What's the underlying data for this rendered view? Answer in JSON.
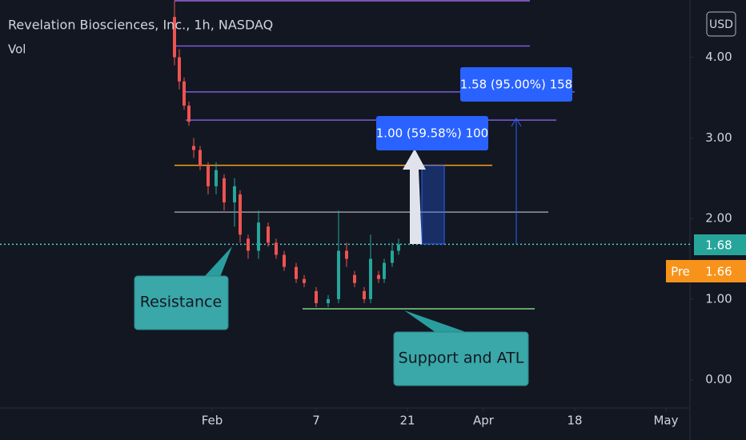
{
  "chart_data": {
    "type": "candlestick",
    "title": "Revelation Biosciences, Inc., 1h, NASDAQ",
    "subtitle": "Vol",
    "currency": "USD",
    "up_color": "#26a69a",
    "down_color": "#ef5350",
    "xlim": [
      0,
      86.2
    ],
    "xticks": [
      {
        "value": 26.5,
        "label": "Feb"
      },
      {
        "value": 39.5,
        "label": "7"
      },
      {
        "value": 50.9,
        "label": "21"
      },
      {
        "value": 60.4,
        "label": "Apr"
      },
      {
        "value": 71.8,
        "label": "18"
      },
      {
        "value": 83.2,
        "label": "May"
      }
    ],
    "ylim": [
      -0.35,
      4.71
    ],
    "yticks": [
      {
        "value": 0,
        "label": "0.00"
      },
      {
        "value": 1,
        "label": "1.00"
      },
      {
        "value": 2,
        "label": "2.00"
      },
      {
        "value": 3,
        "label": "3.00"
      },
      {
        "value": 4,
        "label": "4.00"
      }
    ],
    "x": [
      21.8,
      22.4,
      23.0,
      23.6,
      24.2,
      25.0,
      26.0,
      27.0,
      28.0,
      29.3,
      30.0,
      31.0,
      32.3,
      33.5,
      34.5,
      35.5,
      37.0,
      38.0,
      39.5,
      41.0,
      42.3,
      43.3,
      44.3,
      45.5,
      46.3,
      47.3,
      48.0,
      49.0,
      49.8
    ],
    "open": [
      4.5,
      4.0,
      3.7,
      3.4,
      2.9,
      2.85,
      2.65,
      2.4,
      2.5,
      2.2,
      2.3,
      1.75,
      1.6,
      1.9,
      1.7,
      1.55,
      1.4,
      1.25,
      1.1,
      0.95,
      1.0,
      1.6,
      1.3,
      1.1,
      1.0,
      1.3,
      1.25,
      1.45,
      1.6
    ],
    "high": [
      4.7,
      4.1,
      3.75,
      3.45,
      3.0,
      2.9,
      2.7,
      2.7,
      2.55,
      2.5,
      2.35,
      1.8,
      2.1,
      1.95,
      1.75,
      1.6,
      1.45,
      1.3,
      1.15,
      1.05,
      2.1,
      1.7,
      1.35,
      1.15,
      1.8,
      1.35,
      1.5,
      1.7,
      1.75
    ],
    "low": [
      3.9,
      3.6,
      3.35,
      3.15,
      2.75,
      2.6,
      2.3,
      2.3,
      2.1,
      1.9,
      1.7,
      1.5,
      1.5,
      1.65,
      1.5,
      1.35,
      1.2,
      1.15,
      0.9,
      0.9,
      0.95,
      1.4,
      1.15,
      0.95,
      0.95,
      1.2,
      1.2,
      1.4,
      1.55
    ],
    "close": [
      4.0,
      3.7,
      3.4,
      3.2,
      2.85,
      2.65,
      2.4,
      2.6,
      2.2,
      2.4,
      1.8,
      1.6,
      1.95,
      1.7,
      1.55,
      1.4,
      1.25,
      1.2,
      0.95,
      1.0,
      1.6,
      1.5,
      1.2,
      1.0,
      1.5,
      1.25,
      1.45,
      1.6,
      1.68
    ],
    "levels": [
      {
        "value": 4.7,
        "color": "#9c6ade",
        "x": [
          21.8,
          66.2
        ]
      },
      {
        "value": 4.14,
        "color": "#7b5cd6",
        "x": [
          21.8,
          66.2
        ]
      },
      {
        "value": 3.57,
        "color": "#7b5cd6",
        "x": [
          23.2,
          71.8
        ]
      },
      {
        "value": 3.22,
        "color": "#7b5cd6",
        "x": [
          23.2,
          69.5
        ]
      },
      {
        "value": 2.66,
        "color": "#f7a21b",
        "x": [
          21.8,
          61.5
        ]
      },
      {
        "value": 2.08,
        "color": "#9598a1",
        "x": [
          21.8,
          68.5
        ]
      },
      {
        "value": 1.68,
        "color": "#4dd0c8",
        "x": [
          0,
          86.2
        ]
      },
      {
        "value": 0.88,
        "color": "#7ed67e",
        "x": [
          37.8,
          66.8
        ]
      }
    ],
    "last_price": 1.68,
    "pre_label": "Pre",
    "pre_price": 1.66,
    "measure_1": "1.00 (59.58%) 100",
    "measure_2": "1.58 (95.00%) 158",
    "annotation_1": "Resistance",
    "annotation_2": "Support and ATL"
  }
}
